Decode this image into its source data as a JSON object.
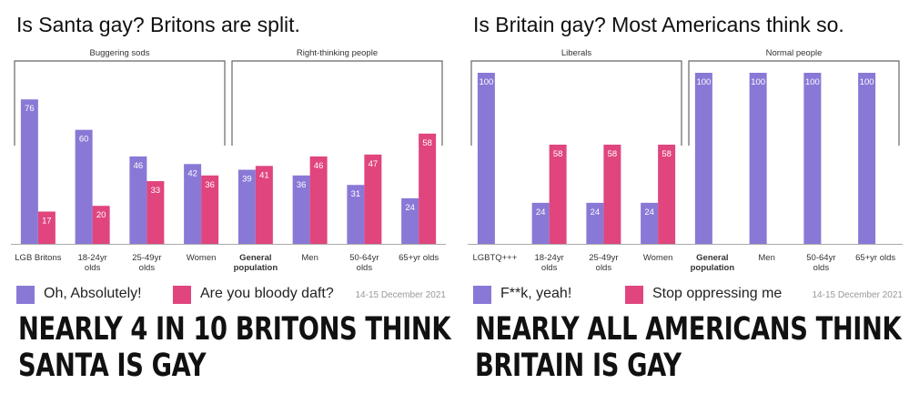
{
  "colors": {
    "series_a": "#8a78d6",
    "series_b": "#e0457e",
    "bracket": "#666666",
    "axis": "#aaaaaa"
  },
  "chart_data": [
    {
      "type": "bar",
      "title": "Is Santa gay? Britons are split.",
      "categories": [
        [
          "LGB Britons"
        ],
        [
          "18-24yr",
          "olds"
        ],
        [
          "25-49yr",
          "olds"
        ],
        [
          "Women"
        ],
        [
          "General",
          "population"
        ],
        [
          "Men"
        ],
        [
          "50-64yr",
          "olds"
        ],
        [
          "65+yr olds"
        ]
      ],
      "bold_categories": [
        4
      ],
      "series": [
        {
          "name": "Oh, Absolutely!",
          "values": [
            76,
            60,
            46,
            42,
            39,
            36,
            31,
            24
          ]
        },
        {
          "name": "Are you bloody daft?",
          "values": [
            17,
            20,
            33,
            36,
            41,
            46,
            47,
            58
          ]
        }
      ],
      "ylim": [
        0,
        90
      ],
      "annotations": [
        {
          "label": "Buggering sods",
          "from": 0,
          "to": 3
        },
        {
          "label": "Right-thinking people",
          "from": 4,
          "to": 7
        }
      ],
      "date_label": "14-15 December 2021",
      "caption": [
        "NEARLY 4 IN 10 BRITONS THINK",
        "SANTA IS GAY"
      ]
    },
    {
      "type": "bar",
      "title": "Is Britain gay? Most Americans think so.",
      "categories": [
        [
          "LGBTQ+++"
        ],
        [
          "18-24yr",
          "olds"
        ],
        [
          "25-49yr",
          "olds"
        ],
        [
          "Women"
        ],
        [
          "General",
          "population"
        ],
        [
          "Men"
        ],
        [
          "50-64yr",
          "olds"
        ],
        [
          "65+yr olds"
        ]
      ],
      "bold_categories": [
        4
      ],
      "series": [
        {
          "name": "F**k, yeah!",
          "values": [
            100,
            24,
            24,
            24,
            100,
            100,
            100,
            100
          ]
        },
        {
          "name": "Stop oppressing me",
          "values": [
            null,
            58,
            58,
            58,
            null,
            null,
            null,
            null
          ]
        }
      ],
      "ylim": [
        0,
        100
      ],
      "annotations": [
        {
          "label": "Liberals",
          "from": 0,
          "to": 3
        },
        {
          "label": "Normal people",
          "from": 4,
          "to": 7
        }
      ],
      "date_label": "14-15 December 2021",
      "caption": [
        "NEARLY ALL AMERICANS THINK",
        "BRITAIN IS GAY"
      ]
    }
  ]
}
